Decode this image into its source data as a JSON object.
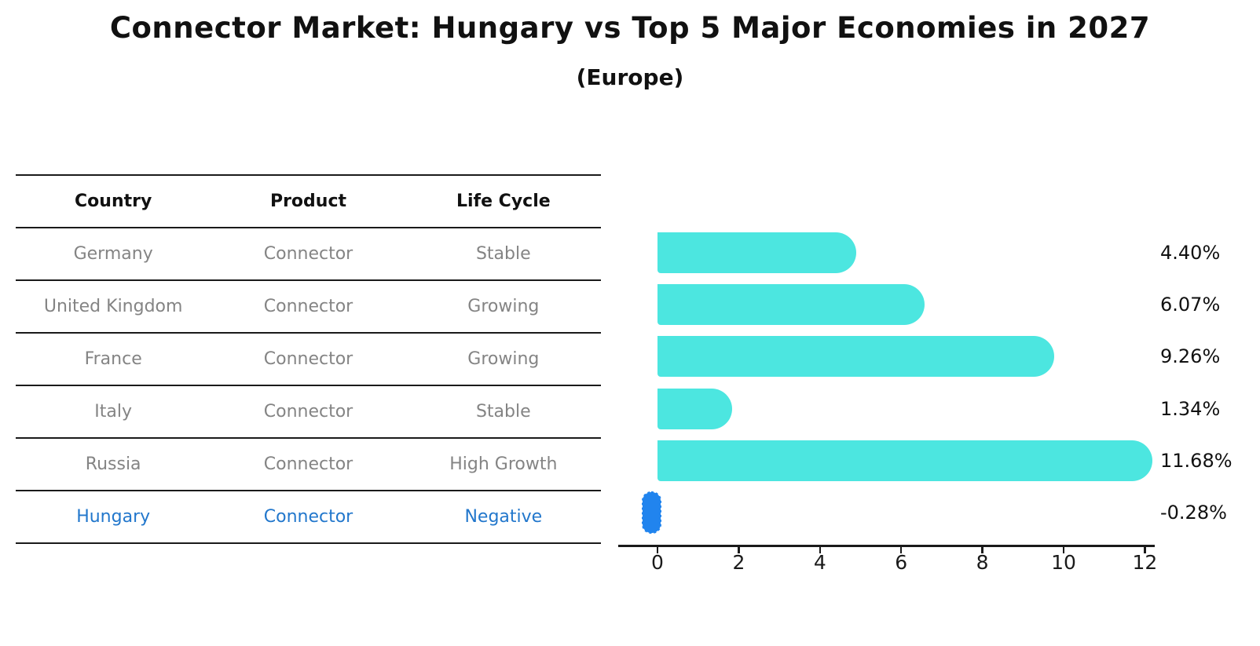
{
  "title": "Connector Market: Hungary vs Top 5 Major Economies in 2027",
  "subtitle": "(Europe)",
  "table": {
    "headers": [
      "Country",
      "Product",
      "Life Cycle"
    ],
    "rows": [
      {
        "country": "Germany",
        "product": "Connector",
        "life_cycle": "Stable",
        "highlight": false
      },
      {
        "country": "United Kingdom",
        "product": "Connector",
        "life_cycle": "Growing",
        "highlight": false
      },
      {
        "country": "France",
        "product": "Connector",
        "life_cycle": "Growing",
        "highlight": false
      },
      {
        "country": "Italy",
        "product": "Connector",
        "life_cycle": "Stable",
        "highlight": false
      },
      {
        "country": "Russia",
        "product": "Connector",
        "life_cycle": "High Growth",
        "highlight": false
      },
      {
        "country": "Hungary",
        "product": "Connector",
        "life_cycle": "Negative",
        "highlight": true
      }
    ]
  },
  "chart_data": {
    "type": "bar",
    "orientation": "horizontal",
    "title": "Connector Market: Hungary vs Top 5 Major Economies in 2027",
    "subtitle": "(Europe)",
    "categories": [
      "Germany",
      "United Kingdom",
      "France",
      "Italy",
      "Russia",
      "Hungary"
    ],
    "values": [
      4.4,
      6.07,
      9.26,
      1.34,
      11.68,
      -0.28
    ],
    "value_labels": [
      "4.40%",
      "6.07%",
      "9.26%",
      "1.34%",
      "11.68%",
      "-0.28%"
    ],
    "x_ticks": [
      0,
      2,
      4,
      6,
      8,
      10,
      12
    ],
    "xlim": [
      -1.0,
      12.3
    ],
    "grid": false,
    "legend": "none",
    "bar_color": "#4ce6e0",
    "negative_bar_color": "#2184ee",
    "highlight_text_color": "#2277cc"
  }
}
